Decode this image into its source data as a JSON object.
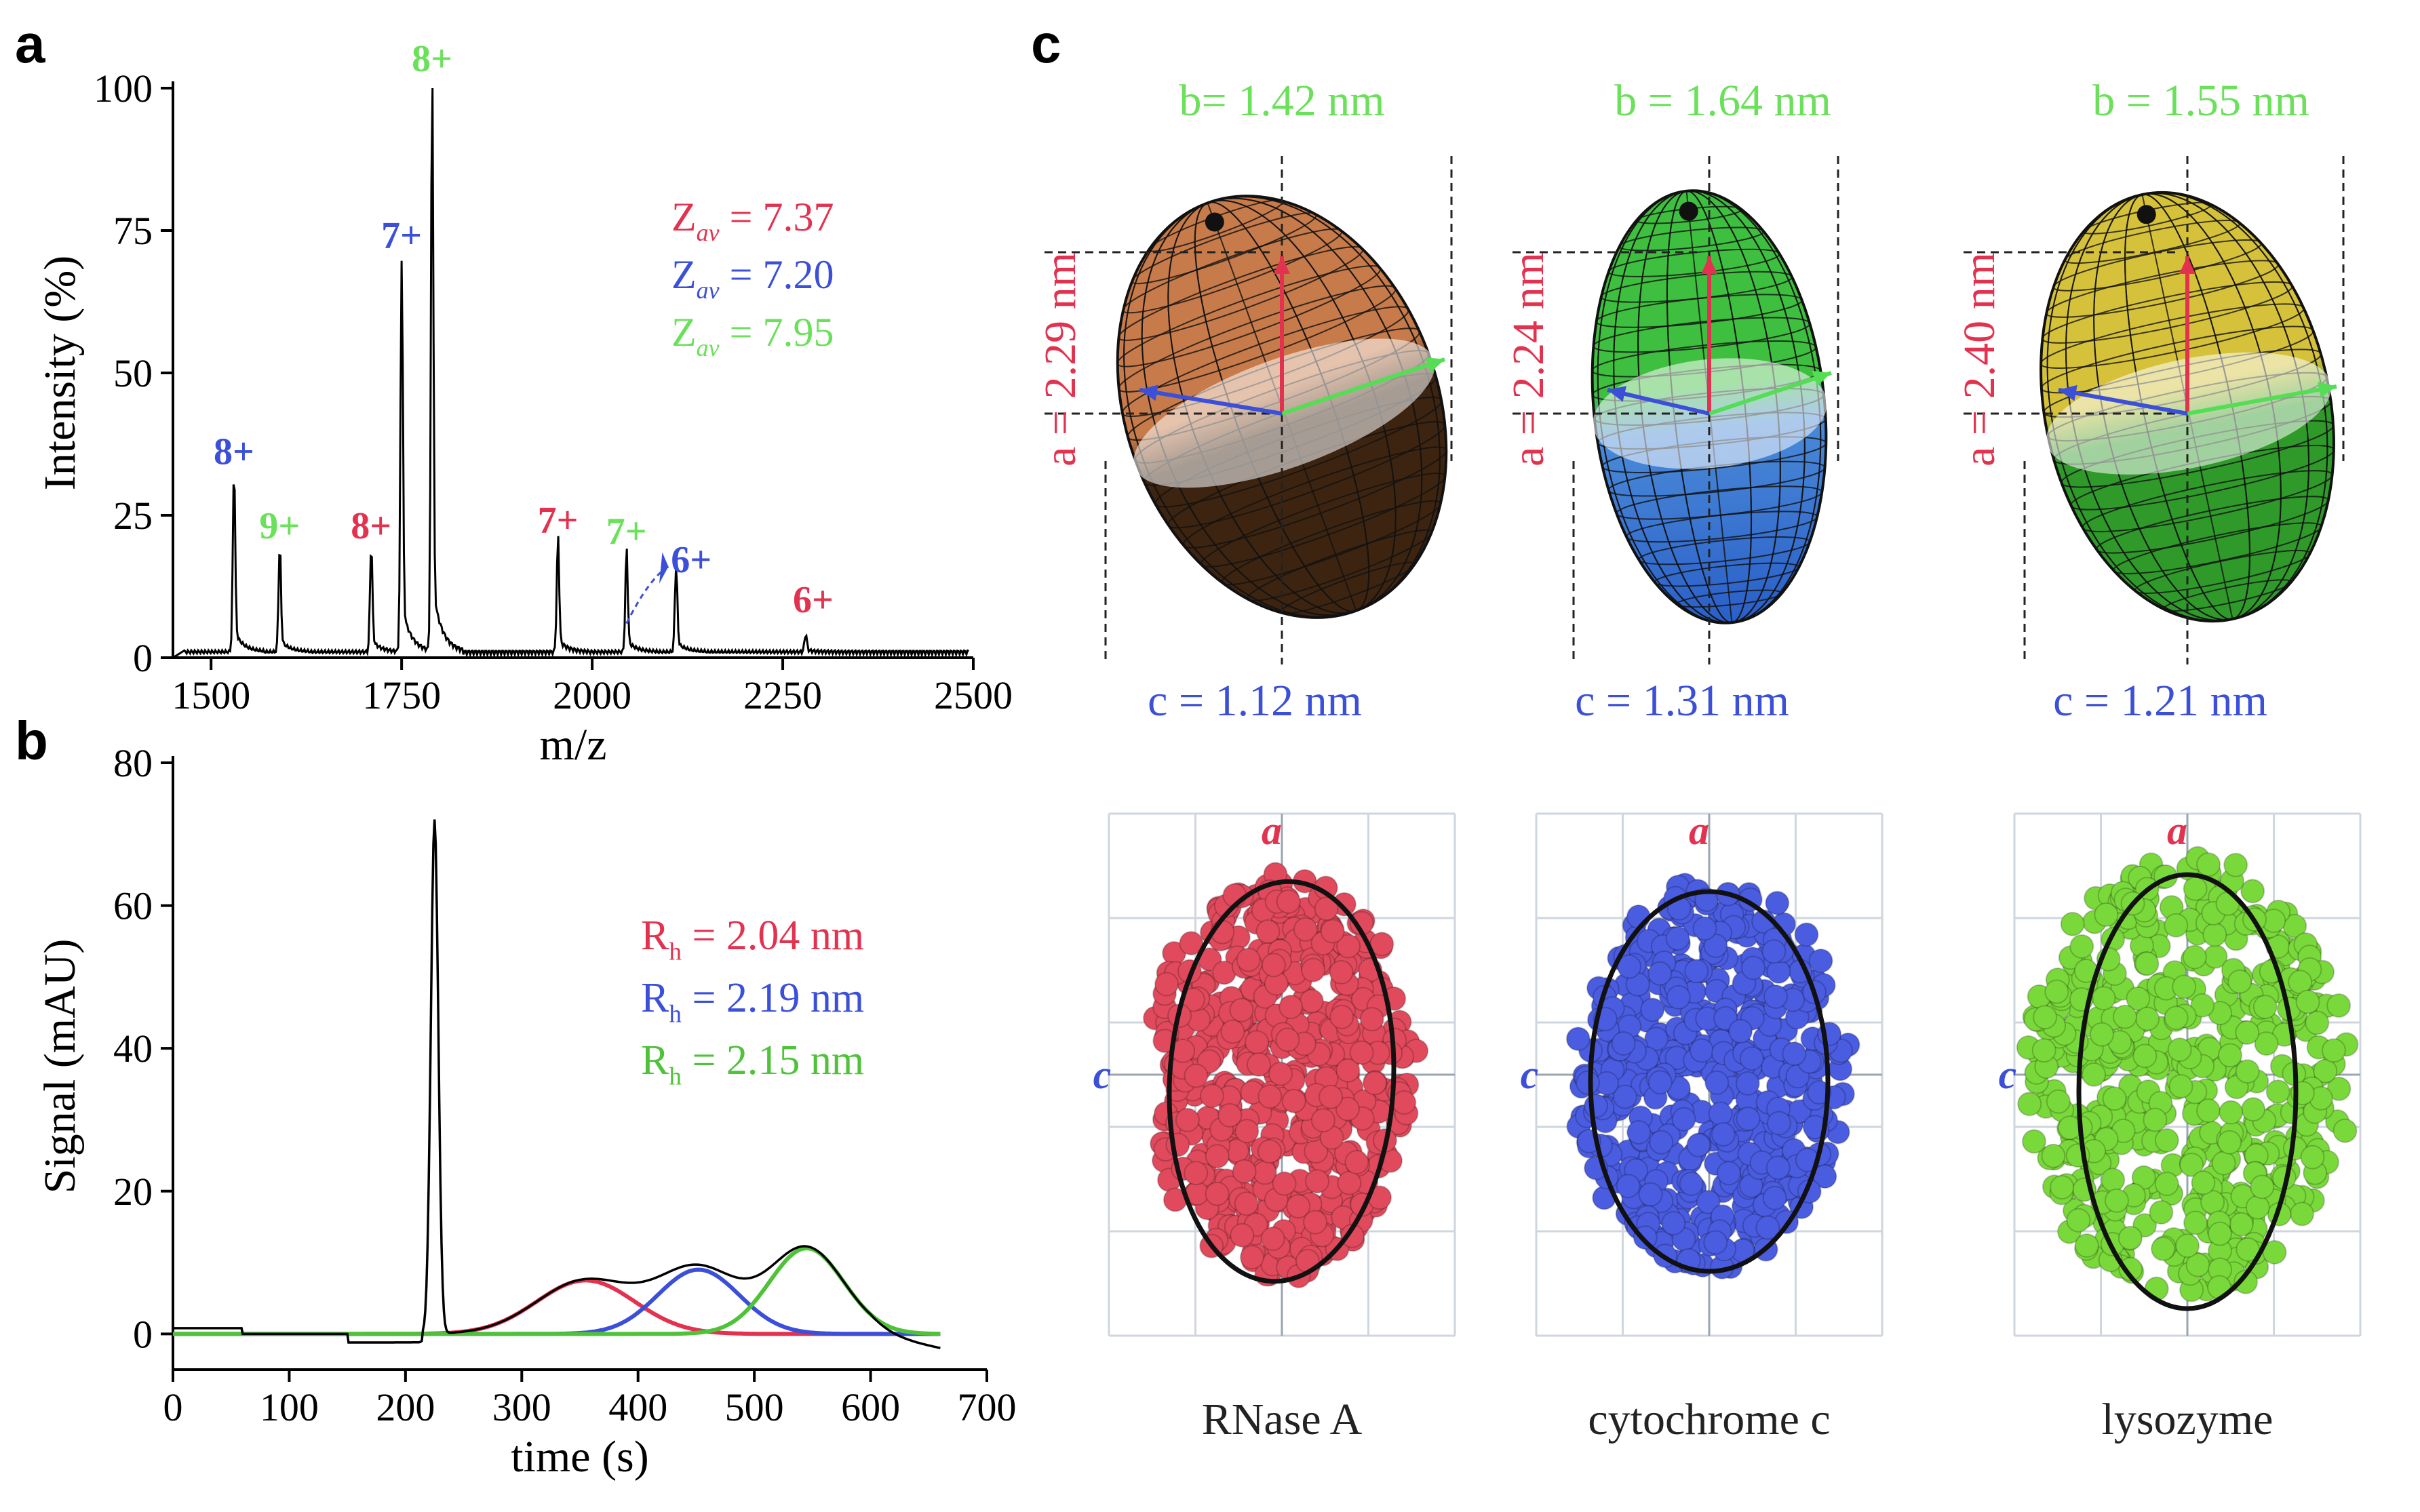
{
  "panels": {
    "a": {
      "letter": "a",
      "chart_data": {
        "type": "line",
        "xlabel": "m/z",
        "ylabel": "Intensity (%)",
        "xlim": [
          1450,
          2500
        ],
        "ylim": [
          0,
          100
        ],
        "xticks": [
          "1500",
          "1750",
          "2000",
          "2250",
          "2500"
        ],
        "yticks": [
          "0",
          "25",
          "50",
          "75",
          "100"
        ],
        "peaks": [
          {
            "label": "8+",
            "x": 1530,
            "y": 31,
            "color": "#3b4fd8"
          },
          {
            "label": "9+",
            "x": 1590,
            "y": 18,
            "color": "#6be05a"
          },
          {
            "label": "8+",
            "x": 1710,
            "y": 18,
            "color": "#e2324f"
          },
          {
            "label": "7+",
            "x": 1750,
            "y": 69,
            "color": "#3b4fd8"
          },
          {
            "label": "8+",
            "x": 1790,
            "y": 100,
            "color": "#6be05a"
          },
          {
            "label": "7+",
            "x": 1955,
            "y": 19,
            "color": "#e2324f"
          },
          {
            "label": "7+",
            "x": 2045,
            "y": 17,
            "color": "#6be05a"
          },
          {
            "label": "6+",
            "x": 2110,
            "y": 15,
            "color": "#3b4fd8"
          },
          {
            "label": "6+",
            "x": 2280,
            "y": 3,
            "color": "#e2324f"
          }
        ],
        "legend": [
          {
            "prefix": "Z",
            "sub": "av",
            "value": "= 7.37",
            "color": "#e2324f"
          },
          {
            "prefix": "Z",
            "sub": "av",
            "value": "= 7.20",
            "color": "#3b4fd8"
          },
          {
            "prefix": "Z",
            "sub": "av",
            "value": "= 7.95",
            "color": "#6be05a"
          }
        ]
      }
    },
    "b": {
      "letter": "b",
      "chart_data": {
        "type": "line",
        "xlabel": "time (s)",
        "ylabel": "Signal (mAU)",
        "xlim": [
          0,
          700
        ],
        "ylim": [
          -5,
          80
        ],
        "xticks": [
          "0",
          "100",
          "200",
          "300",
          "400",
          "500",
          "600",
          "700"
        ],
        "yticks": [
          "0",
          "20",
          "40",
          "60",
          "80"
        ],
        "series": [
          {
            "name": "R_h = 2.04 nm",
            "color": "#e2324f",
            "center": 355,
            "height": 7.5,
            "sigma": 42
          },
          {
            "name": "R_h = 2.19 nm",
            "color": "#3b4fd8",
            "center": 452,
            "height": 9,
            "sigma": 35
          },
          {
            "name": "R_h = 2.15 nm",
            "color": "#4fc23a",
            "center": 545,
            "height": 12,
            "sigma": 32
          }
        ],
        "peak": {
          "x": 225,
          "y": 72
        },
        "legend": [
          {
            "prefix": "R",
            "sub": "h",
            "value": "= 2.04 nm",
            "color": "#e2324f"
          },
          {
            "prefix": "R",
            "sub": "h",
            "value": "= 2.19 nm",
            "color": "#3b4fd8"
          },
          {
            "prefix": "R",
            "sub": "h",
            "value": "= 2.15 nm",
            "color": "#4fc23a"
          }
        ]
      }
    },
    "c": {
      "letter": "c",
      "proteins": [
        {
          "name": "RNase A",
          "b_label": "b= 1.42 nm",
          "a_label": "a = 2.29 nm",
          "c_label": "c = 1.12 nm",
          "top_color": "#c87b4a",
          "bottom_color": "#3d2410",
          "atom_color": "#e04a5c"
        },
        {
          "name": "cytochrome c",
          "b_label": "b = 1.64 nm",
          "a_label": "a = 2.24 nm",
          "c_label": "c = 1.31 nm",
          "top_color": "#3fbf3f",
          "bottom_color": "#2a5fc8",
          "atom_color": "#4a5ce0"
        },
        {
          "name": "lysozyme",
          "b_label": "b = 1.55 nm",
          "a_label": "a = 2.40 nm",
          "c_label": "c = 1.21 nm",
          "top_color": "#d6c23a",
          "bottom_color": "#2f9a2a",
          "atom_color": "#7ad93a"
        }
      ],
      "axis_a": "a",
      "axis_c": "c"
    }
  },
  "colors": {
    "red": "#e2324f",
    "blue": "#3b4fd8",
    "green": "#6be05a"
  }
}
